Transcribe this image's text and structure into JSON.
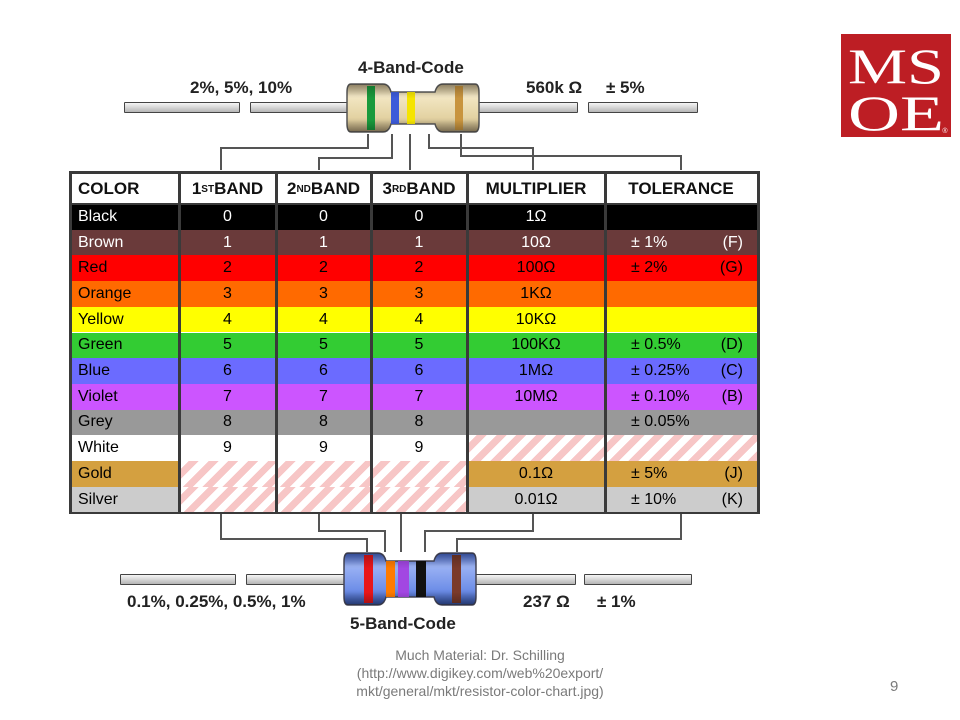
{
  "top_resistor": {
    "title": "4-Band-Code",
    "left_label": "2%, 5%, 10%",
    "value_label": "560k Ω",
    "tolerance_label": "± 5%",
    "band_colors": [
      "#1a9a3c",
      "#3d5bd9",
      "#f5e400",
      "#c8943e"
    ],
    "body_color": "#e6d5a9"
  },
  "bottom_resistor": {
    "title": "5-Band-Code",
    "left_label": "0.1%, 0.25%, 0.5%, 1%",
    "value_label": "237 Ω",
    "tolerance_label": "± 1%",
    "band_colors": [
      "#e8161a",
      "#ff7b00",
      "#a247e2",
      "#111111",
      "#7a3a2a"
    ],
    "body_color": "#6f8fe8"
  },
  "table": {
    "headers": {
      "color": "COLOR",
      "band1_num": "1",
      "band1_sup": "ST",
      "band1_word": " BAND",
      "band2_num": "2",
      "band2_sup": "ND",
      "band2_word": " BAND",
      "band3_num": "3",
      "band3_sup": "RD",
      "band3_word": " BAND",
      "multiplier": "MULTIPLIER",
      "tolerance": "TOLERANCE"
    },
    "rows": [
      {
        "name": "Black",
        "b1": "0",
        "b2": "0",
        "b3": "0",
        "mult": "1Ω",
        "tol": "",
        "tol_code": "",
        "bg": "#000000",
        "fg": "#ffffff"
      },
      {
        "name": "Brown",
        "b1": "1",
        "b2": "1",
        "b3": "1",
        "mult": "10Ω",
        "tol": "± 1%",
        "tol_code": "(F)",
        "bg": "#6a3a3a",
        "fg": "#ffffff"
      },
      {
        "name": "Red",
        "b1": "2",
        "b2": "2",
        "b3": "2",
        "mult": "100Ω",
        "tol": "± 2%",
        "tol_code": "(G)",
        "bg": "#ff0000",
        "fg": "#000000"
      },
      {
        "name": "Orange",
        "b1": "3",
        "b2": "3",
        "b3": "3",
        "mult": "1KΩ",
        "tol": "",
        "tol_code": "",
        "bg": "#ff6a00",
        "fg": "#000000"
      },
      {
        "name": "Yellow",
        "b1": "4",
        "b2": "4",
        "b3": "4",
        "mult": "10KΩ",
        "tol": "",
        "tol_code": "",
        "bg": "#ffff00",
        "fg": "#000000"
      },
      {
        "name": "Green",
        "b1": "5",
        "b2": "5",
        "b3": "5",
        "mult": "100KΩ",
        "tol": "± 0.5%",
        "tol_code": "(D)",
        "bg": "#33cc33",
        "fg": "#000000"
      },
      {
        "name": "Blue",
        "b1": "6",
        "b2": "6",
        "b3": "6",
        "mult": "1MΩ",
        "tol": "± 0.25%",
        "tol_code": "(C)",
        "bg": "#6b6bff",
        "fg": "#000000"
      },
      {
        "name": "Violet",
        "b1": "7",
        "b2": "7",
        "b3": "7",
        "mult": "10MΩ",
        "tol": "± 0.10%",
        "tol_code": "(B)",
        "bg": "#cc55ff",
        "fg": "#000000"
      },
      {
        "name": "Grey",
        "b1": "8",
        "b2": "8",
        "b3": "8",
        "mult": "",
        "tol": "± 0.05%",
        "tol_code": "",
        "bg": "#999999",
        "fg": "#000000"
      },
      {
        "name": "White",
        "b1": "9",
        "b2": "9",
        "b3": "9",
        "mult": "",
        "tol": "",
        "tol_code": "",
        "bg": "#ffffff",
        "fg": "#000000"
      },
      {
        "name": "Gold",
        "b1": "",
        "b2": "",
        "b3": "",
        "mult": "0.1Ω",
        "tol": "± 5%",
        "tol_code": "(J)",
        "bg": "#d4a040",
        "fg": "#000000"
      },
      {
        "name": "Silver",
        "b1": "",
        "b2": "",
        "b3": "",
        "mult": "0.01Ω",
        "tol": "± 10%",
        "tol_code": "(K)",
        "bg": "#cccccc",
        "fg": "#000000"
      }
    ],
    "hatched_cells": {
      "White": [
        "mult",
        "tol"
      ],
      "Gold": [
        "b1",
        "b2",
        "b3"
      ],
      "Silver": [
        "b1",
        "b2",
        "b3"
      ]
    }
  },
  "logo": {
    "text": "MSOE",
    "reg_mark": "®",
    "bg": "#bd1e24"
  },
  "footer": {
    "line1": "Much Material: Dr. Schilling",
    "line2": "(http://www.digikey.com/web%20export/",
    "line3": "mkt/general/mkt/resistor-color-chart.jpg)"
  },
  "page_number": "9"
}
